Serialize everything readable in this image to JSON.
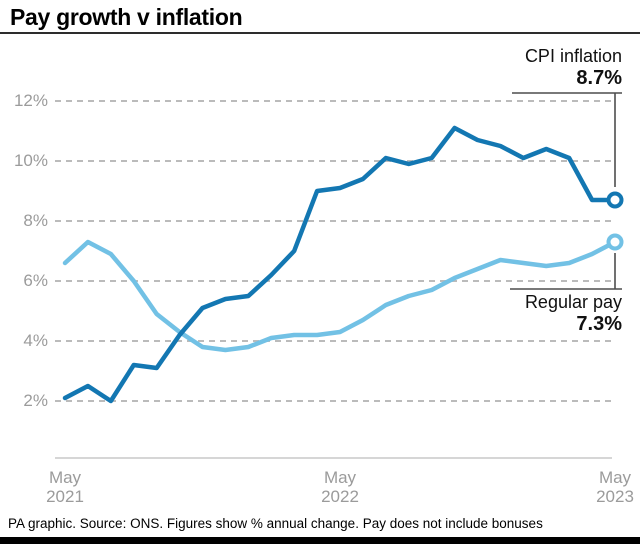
{
  "header": {
    "title": "Pay growth v inflation"
  },
  "chart_data": {
    "type": "line",
    "title": "Pay growth v inflation",
    "xlabel": "",
    "ylabel": "% annual change",
    "ylim": [
      2,
      12
    ],
    "yticks": [
      2,
      4,
      6,
      8,
      10,
      12
    ],
    "ytick_suffix": "%",
    "grid": "horizontal-dashed",
    "legend_position": "end-of-line annotations",
    "categories": [
      "May 2021",
      "Jun 2021",
      "Jul 2021",
      "Aug 2021",
      "Sep 2021",
      "Oct 2021",
      "Nov 2021",
      "Dec 2021",
      "Jan 2022",
      "Feb 2022",
      "Mar 2022",
      "Apr 2022",
      "May 2022",
      "Jun 2022",
      "Jul 2022",
      "Aug 2022",
      "Sep 2022",
      "Oct 2022",
      "Nov 2022",
      "Dec 2022",
      "Jan 2023",
      "Feb 2023",
      "Mar 2023",
      "Apr 2023",
      "May 2023"
    ],
    "series": [
      {
        "name": "CPI inflation",
        "color": "#1377b2",
        "end_marker": "open-circle",
        "values": [
          2.1,
          2.5,
          2.0,
          3.2,
          3.1,
          4.2,
          5.1,
          5.4,
          5.5,
          6.2,
          7.0,
          9.0,
          9.1,
          9.4,
          10.1,
          9.9,
          10.1,
          11.1,
          10.7,
          10.5,
          10.1,
          10.4,
          10.1,
          8.7,
          8.7
        ]
      },
      {
        "name": "Regular pay",
        "color": "#72c1e5",
        "end_marker": "open-circle",
        "values": [
          6.6,
          7.3,
          6.9,
          6.0,
          4.9,
          4.3,
          3.8,
          3.7,
          3.8,
          4.1,
          4.2,
          4.2,
          4.3,
          4.7,
          5.2,
          5.5,
          5.7,
          6.1,
          6.4,
          6.7,
          6.6,
          6.5,
          6.6,
          6.9,
          7.3
        ]
      }
    ],
    "xticks": [
      {
        "index": 0,
        "line1": "May",
        "line2": "2021"
      },
      {
        "index": 12,
        "line1": "May",
        "line2": "2022"
      },
      {
        "index": 24,
        "line1": "May",
        "line2": "2023"
      }
    ],
    "annotations": {
      "cpi": {
        "label": "CPI inflation",
        "value": "8.7%"
      },
      "pay": {
        "label": "Regular pay",
        "value": "7.3%"
      }
    }
  },
  "footer": {
    "note": "PA graphic. Source: ONS. Figures show % annual change. Pay does not include bonuses"
  },
  "colors": {
    "cpi_line": "#1377b2",
    "pay_line": "#72c1e5",
    "gridline": "#bbbbbb",
    "axis_line": "#c9c9c9",
    "leader_line": "#4d4d4d",
    "tick_text": "#9b9b9b",
    "title_text": "#000000",
    "bottom_bar": "#000000"
  }
}
